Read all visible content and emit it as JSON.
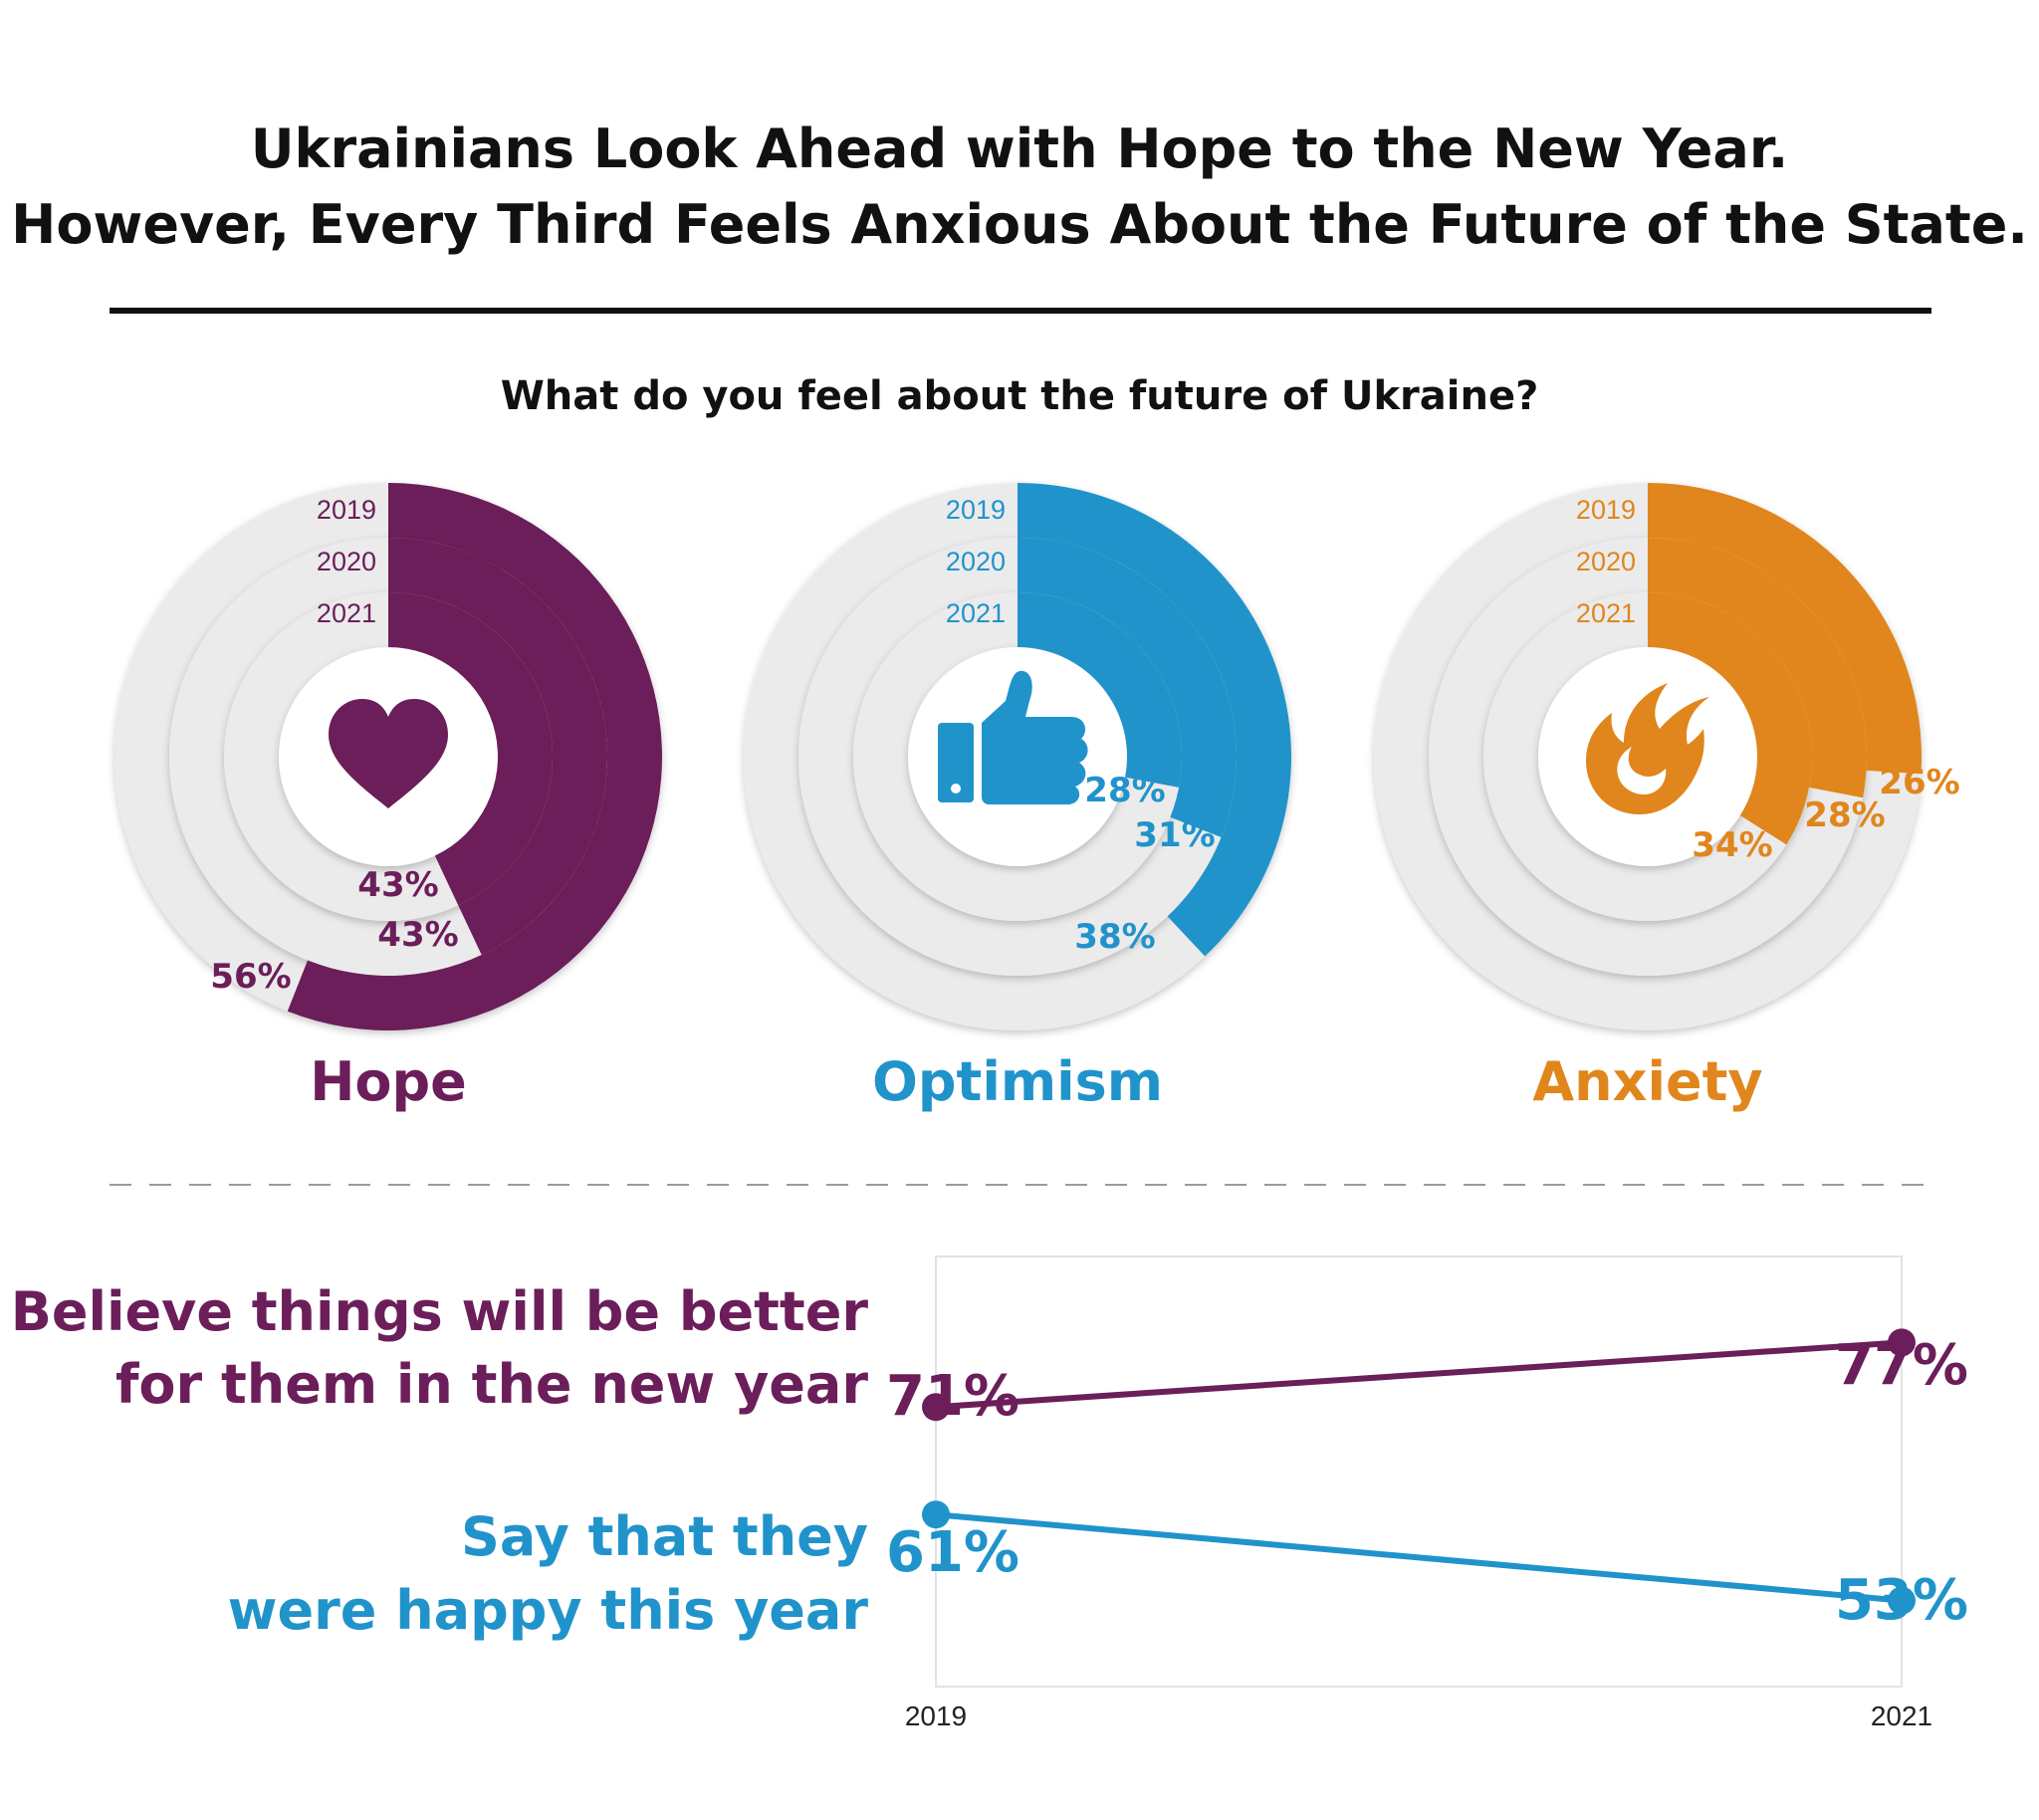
{
  "title_line1": "Ukrainians Look Ahead with Hope to the New Year.",
  "title_line2": "However, Every Third Feels Anxious About the Future of the State.",
  "subtitle": "What do you feel about the future of Ukraine?",
  "colors": {
    "hope": "#6b1e5a",
    "optimism": "#2193cb",
    "anxiety": "#e0861c",
    "ring_track": "#ebebeb",
    "text": "#111111"
  },
  "chart_data": [
    {
      "type": "radial_bar",
      "name": "Hope",
      "icon": "heart-icon",
      "color_key": "hope",
      "years": [
        "2019",
        "2020",
        "2021"
      ],
      "values": [
        56,
        43,
        43
      ],
      "labels": [
        "56%",
        "43%",
        "43%"
      ]
    },
    {
      "type": "radial_bar",
      "name": "Optimism",
      "icon": "thumbs-up-icon",
      "color_key": "optimism",
      "years": [
        "2019",
        "2020",
        "2021"
      ],
      "values": [
        38,
        31,
        28
      ],
      "labels": [
        "38%",
        "31%",
        "28%"
      ]
    },
    {
      "type": "radial_bar",
      "name": "Anxiety",
      "icon": "flame-icon",
      "color_key": "anxiety",
      "years": [
        "2019",
        "2020",
        "2021"
      ],
      "values": [
        26,
        28,
        34
      ],
      "labels": [
        "26%",
        "28%",
        "34%"
      ]
    },
    {
      "type": "line",
      "x": [
        "2019",
        "2021"
      ],
      "ylim": [
        45,
        85
      ],
      "series": [
        {
          "name_lines": [
            "Believe things will be better",
            "for them in the new year"
          ],
          "color_key": "hope",
          "values": [
            71,
            77
          ],
          "labels": [
            "71%",
            "77%"
          ]
        },
        {
          "name_lines": [
            "Say that they",
            "were happy this year"
          ],
          "color_key": "optimism",
          "values": [
            61,
            53
          ],
          "labels": [
            "61%",
            "53%"
          ]
        }
      ]
    }
  ]
}
